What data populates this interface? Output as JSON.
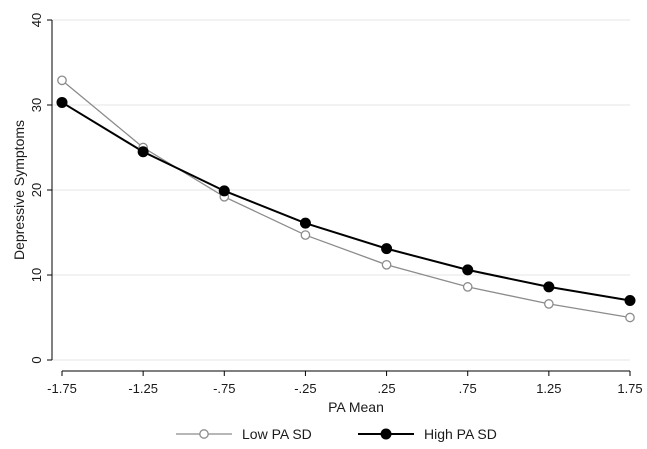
{
  "chart_data": {
    "type": "line",
    "xlabel": "PA Mean",
    "ylabel": "Depressive Symptoms",
    "x_categories": [
      "-1.75",
      "-1.25",
      "-.75",
      "-.25",
      ".25",
      ".75",
      "1.25",
      "1.75"
    ],
    "x": [
      -1.75,
      -1.25,
      -0.75,
      -0.25,
      0.25,
      0.75,
      1.25,
      1.75
    ],
    "ylim": [
      0,
      40
    ],
    "yticks": [
      0,
      10,
      20,
      30,
      40
    ],
    "grid": "horizontal",
    "legend": "bottom",
    "series": [
      {
        "name": "Low PA SD",
        "marker": "hollow-circle",
        "color": "#8c8c8c",
        "values": [
          32.9,
          25.0,
          19.2,
          14.7,
          11.2,
          8.6,
          6.6,
          5.0
        ]
      },
      {
        "name": "High PA SD",
        "marker": "filled-circle",
        "color": "#000000",
        "values": [
          30.3,
          24.5,
          19.9,
          16.1,
          13.1,
          10.6,
          8.6,
          7.0
        ]
      }
    ]
  }
}
